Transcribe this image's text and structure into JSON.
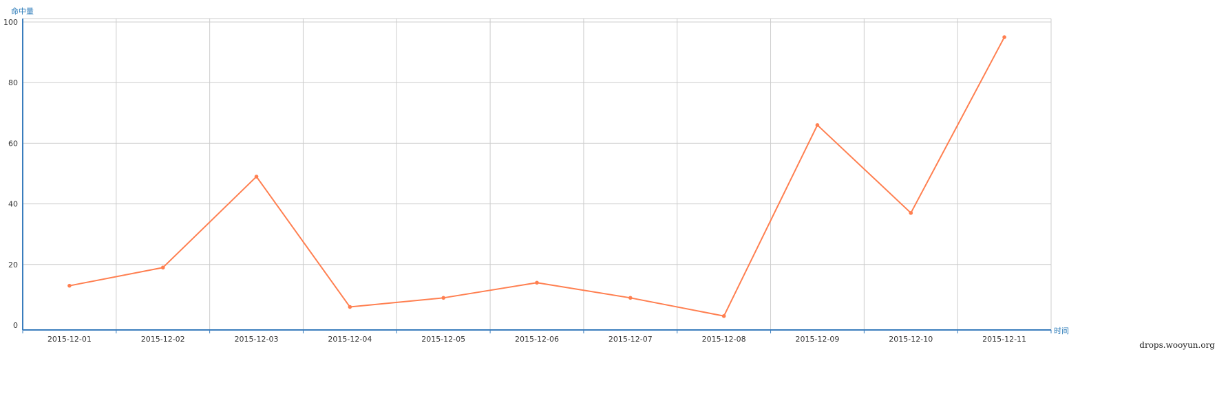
{
  "chart_data": {
    "type": "line",
    "x": [
      "2015-12-01",
      "2015-12-02",
      "2015-12-03",
      "2015-12-04",
      "2015-12-05",
      "2015-12-06",
      "2015-12-07",
      "2015-12-08",
      "2015-12-09",
      "2015-12-10",
      "2015-12-11"
    ],
    "series": [
      {
        "values": [
          13,
          19,
          49,
          6,
          9,
          14,
          9,
          3,
          66,
          37,
          95
        ],
        "color": "#ff7f50"
      }
    ],
    "ylim": [
      0,
      100
    ],
    "yticks": [
      0,
      20,
      40,
      60,
      80,
      100
    ],
    "ylabel": "命中量",
    "xlabel": "时间",
    "grid": true,
    "axis_color": "#3a7dbd",
    "grid_color": "#cccccc"
  },
  "watermark": "drops.wooyun.org"
}
